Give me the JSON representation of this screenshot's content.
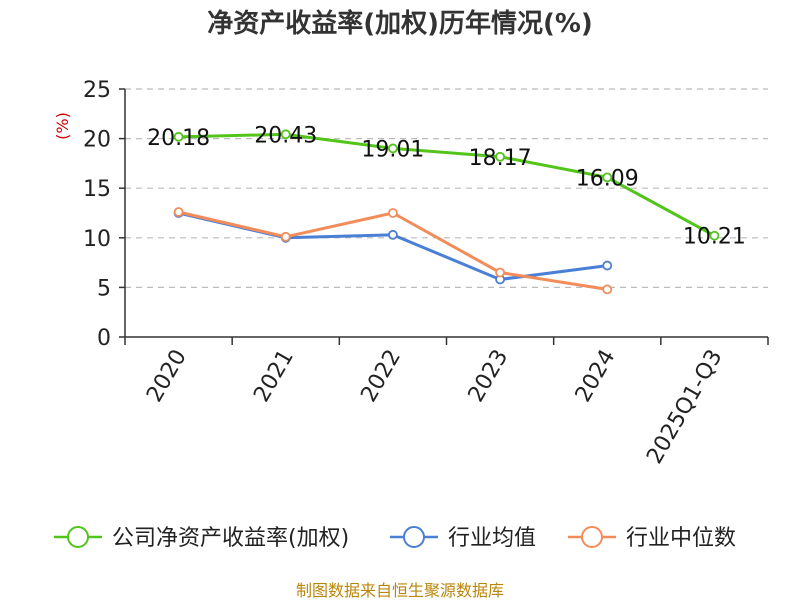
{
  "colors": {
    "company": "#52c41a",
    "industry_avg": "#4a7fd6",
    "industry_median": "#f28c5a",
    "grid": "#bbbbbb",
    "axis": "#333333",
    "unit": "#cc0000",
    "source": "#b8860b"
  },
  "chart_data": {
    "type": "line",
    "title": "净资产收益率(加权)历年情况(%)",
    "ylabel": "(%)",
    "xlabel": "",
    "ylim": [
      0,
      25
    ],
    "yticks": [
      "0",
      "5",
      "10",
      "15",
      "20",
      "25"
    ],
    "ytick_values": [
      0,
      5,
      10,
      15,
      20,
      25
    ],
    "categories": [
      "2020",
      "2021",
      "2022",
      "2023",
      "2024",
      "2025Q1-Q3"
    ],
    "grid": true,
    "legend_position": "bottom",
    "series": [
      {
        "name": "公司净资产收益率(加权)",
        "color_key": "company",
        "values": [
          20.18,
          20.43,
          19.01,
          18.17,
          16.09,
          10.21
        ],
        "labels": [
          "20.18",
          "20.43",
          "19.01",
          "18.17",
          "16.09",
          "10.21"
        ],
        "show_labels": true
      },
      {
        "name": "行业均值",
        "color_key": "industry_avg",
        "values": [
          12.5,
          10.0,
          10.3,
          5.8,
          7.2,
          null
        ],
        "show_labels": false
      },
      {
        "name": "行业中位数",
        "color_key": "industry_median",
        "values": [
          12.6,
          10.1,
          12.5,
          6.5,
          4.8,
          null
        ],
        "show_labels": false
      }
    ]
  },
  "source": "制图数据来自恒生聚源数据库"
}
